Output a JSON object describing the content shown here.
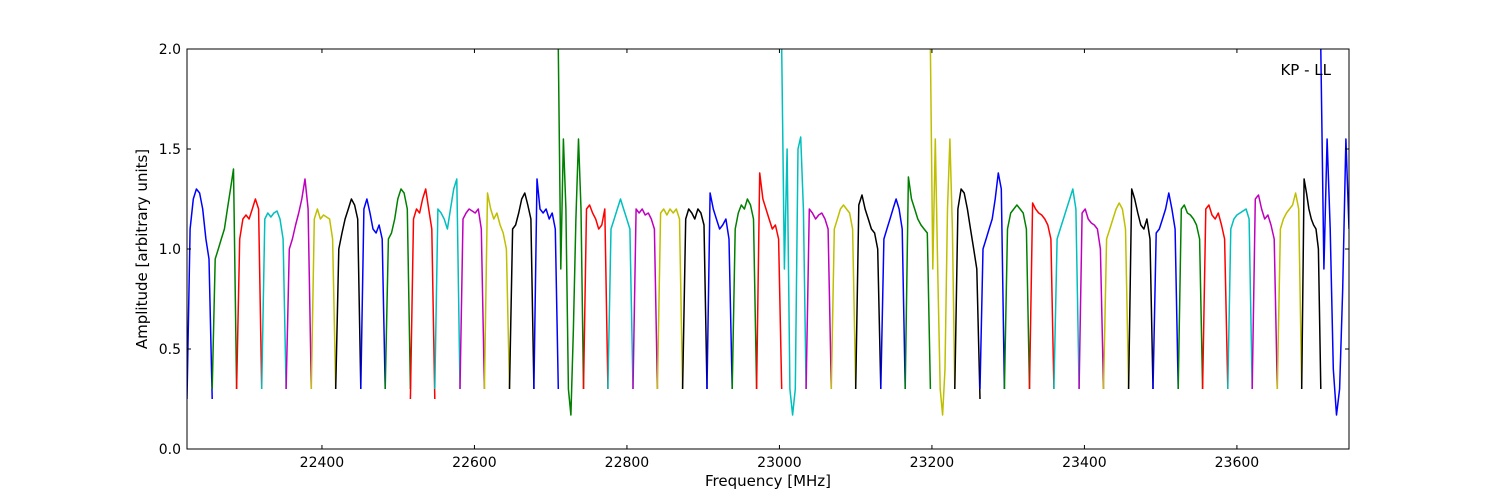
{
  "chart_data": {
    "type": "line",
    "title": "",
    "annotation": "KP - LL",
    "xlabel": "Frequency [MHz]",
    "ylabel": "Amplitude [arbitrary units]",
    "xlim": [
      22223,
      23747
    ],
    "ylim": [
      0.0,
      2.0
    ],
    "xticks": [
      "22400",
      "22600",
      "22800",
      "23000",
      "23200",
      "23400",
      "23600"
    ],
    "xtick_values": [
      22400,
      22600,
      22800,
      23000,
      23200,
      23400,
      23600
    ],
    "yticks": [
      "0.0",
      "0.5",
      "1.0",
      "1.5",
      "2.0"
    ],
    "ytick_values": [
      0.0,
      0.5,
      1.0,
      1.5,
      2.0
    ],
    "grid": false,
    "colors": {
      "b": "#0000ff",
      "g": "#008000",
      "r": "#ff0000",
      "c": "#00bfbf",
      "m": "#bf00bf",
      "y": "#bfbf00",
      "k": "#000000"
    },
    "segments": [
      {
        "start": 22223,
        "end": 22256,
        "color": "b",
        "values": [
          0.25,
          1.1,
          1.25,
          1.3,
          1.28,
          1.2,
          1.05,
          0.95,
          0.25
        ]
      },
      {
        "start": 22256,
        "end": 22288,
        "color": "g",
        "values": [
          0.3,
          0.95,
          1.0,
          1.05,
          1.1,
          1.2,
          1.3,
          1.4,
          0.3
        ]
      },
      {
        "start": 22288,
        "end": 22321,
        "color": "r",
        "values": [
          0.3,
          1.05,
          1.15,
          1.17,
          1.15,
          1.2,
          1.25,
          1.2,
          0.3
        ]
      },
      {
        "start": 22321,
        "end": 22353,
        "color": "c",
        "values": [
          0.3,
          1.15,
          1.18,
          1.16,
          1.18,
          1.19,
          1.15,
          1.05,
          0.3
        ]
      },
      {
        "start": 22353,
        "end": 22386,
        "color": "m",
        "values": [
          0.3,
          1.0,
          1.05,
          1.12,
          1.18,
          1.25,
          1.35,
          1.2,
          0.3
        ]
      },
      {
        "start": 22386,
        "end": 22418,
        "color": "y",
        "values": [
          0.3,
          1.15,
          1.2,
          1.15,
          1.17,
          1.16,
          1.15,
          1.05,
          0.3
        ]
      },
      {
        "start": 22418,
        "end": 22451,
        "color": "k",
        "values": [
          0.3,
          1.0,
          1.08,
          1.15,
          1.2,
          1.25,
          1.22,
          1.15,
          0.3
        ]
      },
      {
        "start": 22451,
        "end": 22483,
        "color": "b",
        "values": [
          0.3,
          1.2,
          1.25,
          1.18,
          1.1,
          1.08,
          1.12,
          1.05,
          0.3
        ]
      },
      {
        "start": 22483,
        "end": 22516,
        "color": "g",
        "values": [
          0.3,
          1.05,
          1.08,
          1.15,
          1.25,
          1.3,
          1.28,
          1.2,
          0.3
        ]
      },
      {
        "start": 22516,
        "end": 22548,
        "color": "r",
        "values": [
          0.25,
          1.15,
          1.2,
          1.18,
          1.25,
          1.3,
          1.2,
          1.1,
          0.25
        ]
      },
      {
        "start": 22548,
        "end": 22581,
        "color": "c",
        "values": [
          0.3,
          1.2,
          1.18,
          1.15,
          1.1,
          1.2,
          1.3,
          1.35,
          0.3
        ]
      },
      {
        "start": 22581,
        "end": 22613,
        "color": "m",
        "values": [
          0.3,
          1.15,
          1.18,
          1.2,
          1.19,
          1.18,
          1.2,
          1.1,
          0.3
        ]
      },
      {
        "start": 22613,
        "end": 22646,
        "color": "y",
        "values": [
          0.3,
          1.28,
          1.2,
          1.15,
          1.18,
          1.12,
          1.08,
          1.0,
          0.3
        ]
      },
      {
        "start": 22646,
        "end": 22678,
        "color": "k",
        "values": [
          0.3,
          1.1,
          1.12,
          1.18,
          1.25,
          1.28,
          1.22,
          1.15,
          0.3
        ]
      },
      {
        "start": 22678,
        "end": 22710,
        "color": "b",
        "values": [
          0.3,
          1.35,
          1.2,
          1.18,
          1.2,
          1.15,
          1.18,
          1.1,
          0.3
        ]
      },
      {
        "start": 22710,
        "end": 22743,
        "color": "g",
        "values": [
          2.0,
          0.9,
          1.55,
          1.2,
          0.3,
          0.17,
          0.6,
          1.15,
          1.55,
          1.2,
          0.3
        ]
      },
      {
        "start": 22743,
        "end": 22775,
        "color": "r",
        "values": [
          0.3,
          1.2,
          1.22,
          1.18,
          1.15,
          1.1,
          1.12,
          1.2,
          0.3
        ]
      },
      {
        "start": 22775,
        "end": 22808,
        "color": "c",
        "values": [
          0.3,
          1.1,
          1.15,
          1.2,
          1.25,
          1.2,
          1.15,
          1.1,
          0.3
        ]
      },
      {
        "start": 22808,
        "end": 22840,
        "color": "m",
        "values": [
          0.3,
          1.2,
          1.18,
          1.2,
          1.17,
          1.18,
          1.15,
          1.1,
          0.3
        ]
      },
      {
        "start": 22840,
        "end": 22873,
        "color": "y",
        "values": [
          0.3,
          1.18,
          1.2,
          1.17,
          1.2,
          1.18,
          1.2,
          1.15,
          0.3
        ]
      },
      {
        "start": 22873,
        "end": 22905,
        "color": "k",
        "values": [
          0.3,
          1.15,
          1.2,
          1.18,
          1.15,
          1.2,
          1.18,
          1.12,
          0.3
        ]
      },
      {
        "start": 22905,
        "end": 22938,
        "color": "b",
        "values": [
          0.3,
          1.28,
          1.2,
          1.15,
          1.1,
          1.12,
          1.15,
          1.05,
          0.3
        ]
      },
      {
        "start": 22938,
        "end": 22970,
        "color": "g",
        "values": [
          0.3,
          1.1,
          1.18,
          1.22,
          1.2,
          1.25,
          1.22,
          1.15,
          0.3
        ]
      },
      {
        "start": 22970,
        "end": 23003,
        "color": "r",
        "values": [
          0.3,
          1.38,
          1.25,
          1.2,
          1.15,
          1.1,
          1.12,
          1.05,
          0.3
        ]
      },
      {
        "start": 23003,
        "end": 23035,
        "color": "c",
        "values": [
          2.0,
          0.9,
          1.5,
          0.3,
          0.17,
          0.3,
          1.5,
          1.56,
          1.2,
          0.3
        ]
      },
      {
        "start": 23035,
        "end": 23068,
        "color": "m",
        "values": [
          0.3,
          1.2,
          1.18,
          1.15,
          1.17,
          1.18,
          1.15,
          1.1,
          0.3
        ]
      },
      {
        "start": 23068,
        "end": 23100,
        "color": "y",
        "values": [
          0.3,
          1.1,
          1.15,
          1.2,
          1.22,
          1.2,
          1.18,
          1.1,
          0.3
        ]
      },
      {
        "start": 23100,
        "end": 23133,
        "color": "k",
        "values": [
          0.3,
          1.22,
          1.27,
          1.2,
          1.15,
          1.1,
          1.08,
          1.0,
          0.3
        ]
      },
      {
        "start": 23133,
        "end": 23165,
        "color": "b",
        "values": [
          0.3,
          1.05,
          1.1,
          1.15,
          1.2,
          1.25,
          1.2,
          1.1,
          0.3
        ]
      },
      {
        "start": 23165,
        "end": 23198,
        "color": "g",
        "values": [
          0.3,
          1.36,
          1.25,
          1.2,
          1.15,
          1.12,
          1.1,
          1.08,
          0.3
        ]
      },
      {
        "start": 23198,
        "end": 23230,
        "color": "y",
        "values": [
          2.0,
          0.9,
          1.55,
          0.9,
          0.3,
          0.17,
          0.4,
          1.2,
          1.55,
          1.1,
          0.3
        ]
      },
      {
        "start": 23230,
        "end": 23263,
        "color": "k",
        "values": [
          0.3,
          1.2,
          1.3,
          1.28,
          1.2,
          1.1,
          1.0,
          0.9,
          0.25
        ]
      },
      {
        "start": 23263,
        "end": 23295,
        "color": "b",
        "values": [
          0.3,
          1.0,
          1.05,
          1.1,
          1.15,
          1.25,
          1.38,
          1.3,
          0.3
        ]
      },
      {
        "start": 23295,
        "end": 23328,
        "color": "g",
        "values": [
          0.3,
          1.1,
          1.18,
          1.2,
          1.22,
          1.2,
          1.18,
          1.1,
          0.3
        ]
      },
      {
        "start": 23328,
        "end": 23360,
        "color": "r",
        "values": [
          0.3,
          1.23,
          1.2,
          1.18,
          1.17,
          1.15,
          1.12,
          1.05,
          0.3
        ]
      },
      {
        "start": 23360,
        "end": 23393,
        "color": "c",
        "values": [
          0.3,
          1.05,
          1.1,
          1.15,
          1.2,
          1.25,
          1.3,
          1.2,
          0.3
        ]
      },
      {
        "start": 23393,
        "end": 23425,
        "color": "m",
        "values": [
          0.3,
          1.18,
          1.2,
          1.15,
          1.13,
          1.12,
          1.1,
          1.0,
          0.3
        ]
      },
      {
        "start": 23425,
        "end": 23458,
        "color": "y",
        "values": [
          0.3,
          1.05,
          1.1,
          1.15,
          1.2,
          1.23,
          1.2,
          1.1,
          0.3
        ]
      },
      {
        "start": 23458,
        "end": 23490,
        "color": "k",
        "values": [
          0.3,
          1.3,
          1.25,
          1.18,
          1.12,
          1.1,
          1.15,
          1.05,
          0.3
        ]
      },
      {
        "start": 23490,
        "end": 23523,
        "color": "b",
        "values": [
          0.3,
          1.08,
          1.1,
          1.15,
          1.2,
          1.28,
          1.2,
          1.1,
          0.3
        ]
      },
      {
        "start": 23523,
        "end": 23555,
        "color": "g",
        "values": [
          0.3,
          1.2,
          1.22,
          1.18,
          1.17,
          1.15,
          1.12,
          1.05,
          0.3
        ]
      },
      {
        "start": 23555,
        "end": 23588,
        "color": "r",
        "values": [
          0.3,
          1.2,
          1.22,
          1.17,
          1.15,
          1.18,
          1.12,
          1.05,
          0.3
        ]
      },
      {
        "start": 23588,
        "end": 23620,
        "color": "c",
        "values": [
          0.3,
          1.1,
          1.15,
          1.17,
          1.18,
          1.19,
          1.2,
          1.15,
          0.3
        ]
      },
      {
        "start": 23620,
        "end": 23653,
        "color": "m",
        "values": [
          0.3,
          1.25,
          1.27,
          1.2,
          1.15,
          1.17,
          1.12,
          1.05,
          0.3
        ]
      },
      {
        "start": 23653,
        "end": 23685,
        "color": "y",
        "values": [
          0.3,
          1.1,
          1.15,
          1.18,
          1.2,
          1.22,
          1.28,
          1.2,
          0.3
        ]
      },
      {
        "start": 23685,
        "end": 23710,
        "color": "k",
        "values": [
          0.3,
          1.35,
          1.28,
          1.2,
          1.15,
          1.12,
          1.1,
          1.0,
          0.3
        ]
      },
      {
        "start": 23710,
        "end": 23747,
        "color": "b",
        "values": [
          2.0,
          0.9,
          1.55,
          1.1,
          0.4,
          0.17,
          0.3,
          0.8,
          1.55,
          1.1
        ]
      }
    ]
  }
}
